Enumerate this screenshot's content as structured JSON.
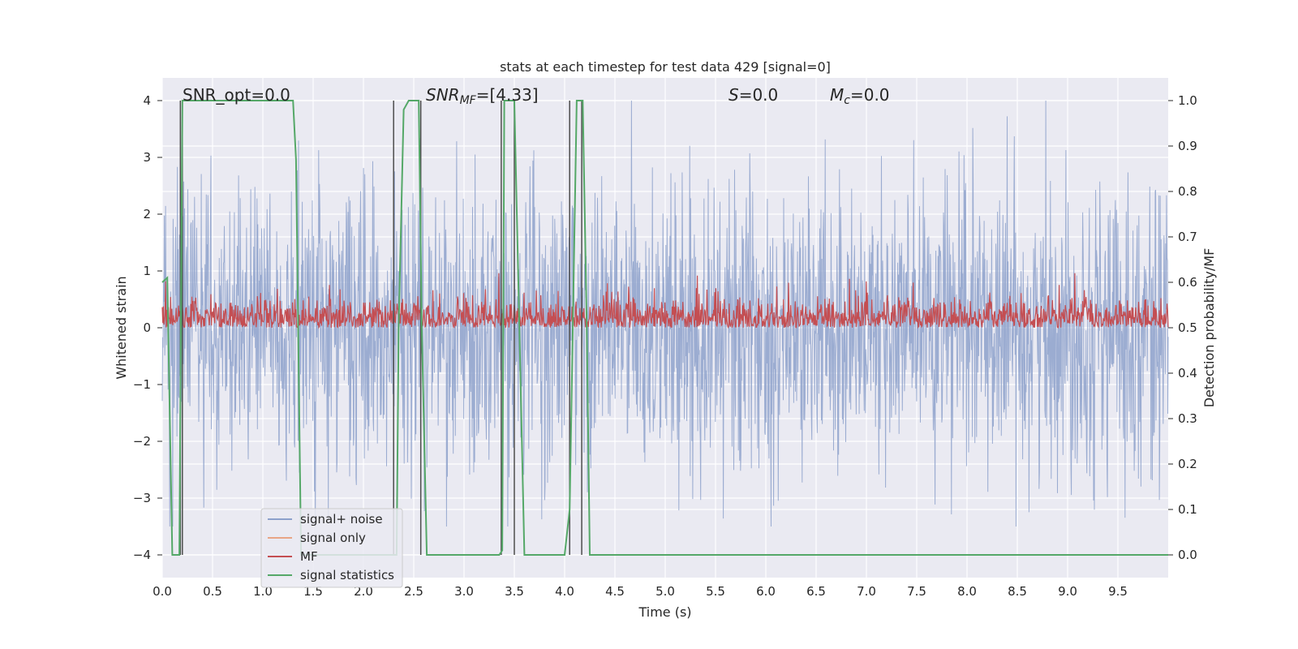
{
  "chart_data": {
    "type": "line",
    "title": "stats at each timestep for test data 429 [signal=0]",
    "xlabel": "Time (s)",
    "ylabel": "Whitened strain",
    "y2label": "Detection probability/MF",
    "xlim": [
      0,
      10
    ],
    "ylim": [
      -4.4,
      4.4
    ],
    "y2lim": [
      -0.05,
      1.05
    ],
    "xticks": [
      "0.0",
      "0.5",
      "1.0",
      "1.5",
      "2.0",
      "2.5",
      "3.0",
      "3.5",
      "4.0",
      "4.5",
      "5.0",
      "5.5",
      "6.0",
      "6.5",
      "7.0",
      "7.5",
      "8.0",
      "8.5",
      "9.0",
      "9.5"
    ],
    "yticks": [
      "4",
      "3",
      "2",
      "1",
      "0",
      "−1",
      "−2",
      "−3",
      "−4"
    ],
    "y2ticks": [
      "1.0",
      "0.9",
      "0.8",
      "0.7",
      "0.6",
      "0.5",
      "0.4",
      "0.3",
      "0.2",
      "0.1",
      "0.0"
    ],
    "grid": true,
    "legend_position": "lower-left",
    "annotations": {
      "snr_opt": "SNR_opt=0.0",
      "snr_mf_base": "SNR",
      "snr_mf_sub": "MF",
      "snr_mf_value": "=[4.33]",
      "s_var": "S",
      "s_value": "=0.0",
      "mc_var": "M",
      "mc_sub": "c",
      "mc_value": "=0.0"
    },
    "series": [
      {
        "name": "signal+ noise",
        "axis": "left",
        "color": "#8da1cb",
        "style": "noise",
        "approx_range": [
          -3.5,
          4.0
        ]
      },
      {
        "name": "signal only",
        "axis": "left",
        "color": "#e8a585",
        "values": []
      },
      {
        "name": "MF",
        "axis": "right",
        "color": "#c44e52",
        "style": "noise",
        "approx_range": [
          0.5,
          0.62
        ]
      },
      {
        "name": "signal statistics",
        "axis": "right",
        "color": "#55a868",
        "x": [
          0.0,
          0.05,
          0.1,
          0.17,
          0.2,
          0.25,
          0.3,
          1.3,
          1.33,
          1.38,
          2.33,
          2.35,
          2.4,
          2.45,
          2.55,
          2.58,
          2.63,
          2.7,
          3.35,
          3.38,
          3.4,
          3.42,
          3.5,
          3.55,
          3.6,
          4.0,
          4.05,
          4.12,
          4.18,
          4.22,
          4.25,
          10.0
        ],
        "y": [
          0.6,
          0.61,
          0.0,
          0.0,
          1.0,
          1.0,
          1.0,
          1.0,
          0.87,
          0.0,
          0.0,
          0.5,
          0.98,
          1.0,
          1.0,
          0.5,
          0.0,
          0.0,
          0.0,
          0.01,
          1.0,
          1.0,
          1.0,
          0.5,
          0.0,
          0.0,
          0.1,
          1.0,
          1.0,
          0.5,
          0.0,
          0.0
        ]
      },
      {
        "name": "",
        "axis": "right",
        "color": "#4d4d4d",
        "style": "segments",
        "x": [
          0.18,
          0.2,
          2.3,
          2.57,
          3.37,
          3.5,
          4.05,
          4.17
        ]
      }
    ]
  }
}
